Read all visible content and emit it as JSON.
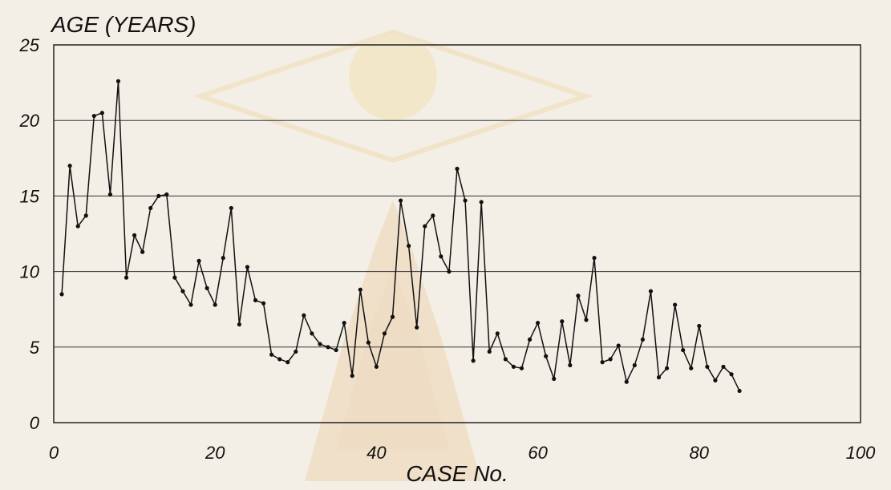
{
  "chart_data": {
    "type": "line",
    "title": "",
    "ylabel": "AGE (YEARS)",
    "xlabel": "CASE No.",
    "xlim": [
      0,
      100
    ],
    "ylim": [
      0,
      25
    ],
    "x_ticks": [
      0,
      20,
      40,
      60,
      80,
      100
    ],
    "y_ticks": [
      0,
      5,
      10,
      15,
      20,
      25
    ],
    "grid": "horizontal",
    "legend": "none",
    "series": [
      {
        "x": [
          1,
          2,
          3,
          4,
          5,
          6,
          7,
          8,
          9,
          10,
          11,
          12,
          13,
          14,
          15,
          16,
          17,
          18,
          19,
          20,
          21,
          22,
          23,
          24,
          25,
          26,
          27,
          28,
          29,
          30,
          31,
          32,
          33,
          34,
          35,
          36,
          37,
          38,
          39,
          40,
          41,
          42,
          43,
          44,
          45,
          46,
          47,
          48,
          49,
          50,
          51,
          52,
          53,
          54,
          55,
          56,
          57,
          58,
          59,
          60,
          61,
          62,
          63,
          64,
          65,
          66,
          67,
          68,
          69,
          70,
          71,
          72,
          73,
          74,
          75,
          76,
          77,
          78,
          79,
          80,
          81,
          82,
          83,
          84,
          85,
          86
        ],
        "values": [
          8.5,
          17.0,
          13.0,
          13.7,
          20.3,
          20.5,
          15.1,
          22.6,
          9.6,
          12.4,
          11.3,
          14.2,
          15.0,
          15.1,
          9.6,
          8.7,
          7.8,
          10.7,
          8.9,
          7.8,
          10.9,
          14.2,
          6.5,
          10.3,
          8.1,
          7.9,
          4.5,
          4.2,
          4.0,
          4.7,
          7.1,
          5.9,
          5.2,
          5.0,
          4.8,
          6.6,
          3.1,
          8.8,
          5.3,
          3.7,
          5.9,
          7.0,
          14.7,
          11.7,
          6.3,
          13.0,
          13.7,
          11.0,
          10.0,
          16.8,
          14.7,
          4.1,
          14.6,
          4.7,
          5.9,
          4.2,
          3.7,
          3.6,
          5.5,
          6.6,
          4.4,
          2.9,
          6.7,
          3.8,
          8.4,
          6.8,
          10.9,
          4.0,
          4.2,
          5.1,
          2.7,
          3.8,
          5.5,
          8.7,
          3.0,
          3.6,
          7.8,
          4.8,
          3.6,
          6.4,
          3.7,
          2.8,
          3.7,
          3.2,
          2.1,
          null
        ],
        "color": "#111111"
      }
    ]
  }
}
